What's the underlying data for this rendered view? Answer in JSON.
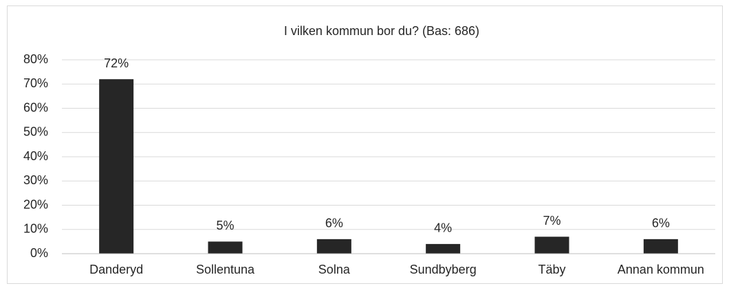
{
  "chart_data": {
    "type": "bar",
    "title": "I vilken kommun bor du? (Bas: 686)",
    "categories": [
      "Danderyd",
      "Sollentuna",
      "Solna",
      "Sundbyberg",
      "Täby",
      "Annan kommun"
    ],
    "values": [
      72,
      5,
      6,
      4,
      7,
      6
    ],
    "value_labels": [
      "72%",
      "5%",
      "6%",
      "4%",
      "7%",
      "6%"
    ],
    "color": "#262626",
    "ylim": [
      0,
      80
    ],
    "yticks": [
      {
        "value": 0,
        "label": "0%"
      },
      {
        "value": 10,
        "label": "10%"
      },
      {
        "value": 20,
        "label": "20%"
      },
      {
        "value": 30,
        "label": "30%"
      },
      {
        "value": 40,
        "label": "40%"
      },
      {
        "value": 50,
        "label": "50%"
      },
      {
        "value": 60,
        "label": "60%"
      },
      {
        "value": 70,
        "label": "70%"
      },
      {
        "value": 80,
        "label": "80%"
      }
    ],
    "grid": true
  }
}
